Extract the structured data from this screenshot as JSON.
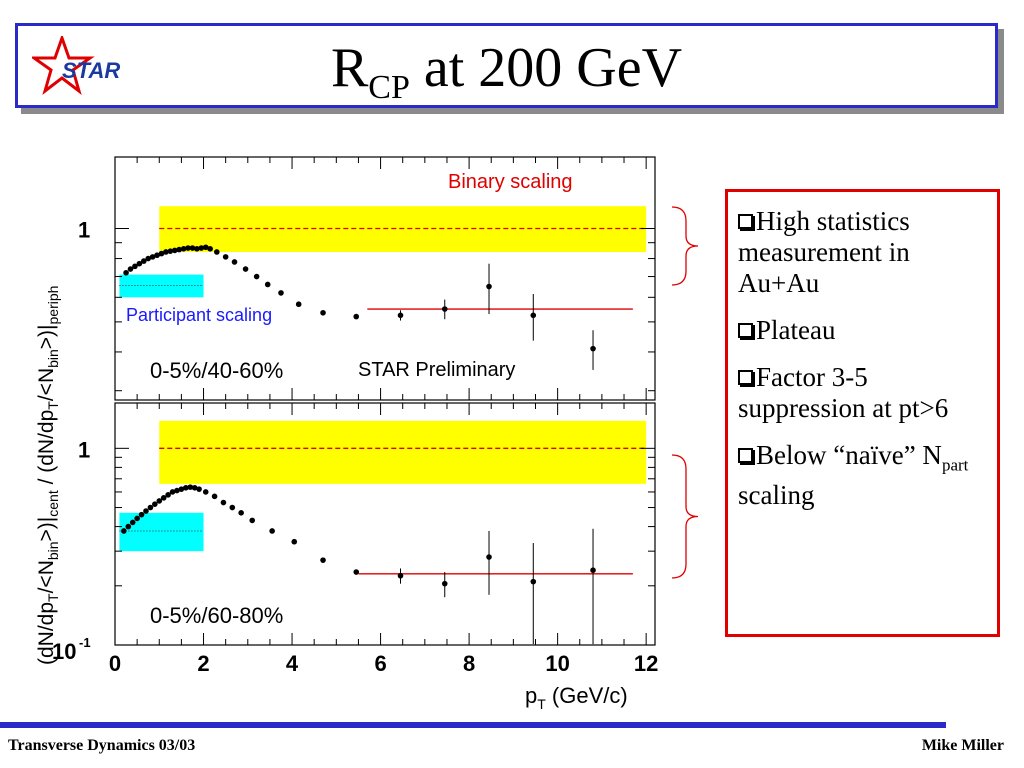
{
  "slide": {
    "title_main": "R",
    "title_sub": "CP",
    "title_rest": " at 200 GeV",
    "logo_text": "STAR",
    "footer_left": "Transverse Dynamics 03/03",
    "footer_right": "Mike Miller"
  },
  "notes": [
    {
      "text": "High statistics measurement in Au+Au"
    },
    {
      "text": "Plateau"
    },
    {
      "text": "Factor 3-5 suppression at pt>6"
    },
    {
      "text": "Below “naïve” N",
      "sub": "part",
      "tail": " scaling"
    }
  ],
  "colors": {
    "band_binary": "#ffff00",
    "band_participant": "#00ffff",
    "fit_line": "#e00000",
    "title_border": "#2a2ac8"
  },
  "chart_data": [
    {
      "type": "scatter",
      "panel": "top",
      "x_range": [
        0,
        12.2
      ],
      "y_scale": "log",
      "ylim": [
        0.28,
        1.7
      ],
      "ytick_label": "1",
      "annotations": {
        "binary": "Binary scaling",
        "participant": "Participant scaling",
        "centrality": "0-5%/40-60%",
        "prelim": "STAR Preliminary"
      },
      "binary_band": {
        "x": [
          1,
          12
        ],
        "y": [
          0.84,
          1.18
        ],
        "center": 1.0
      },
      "participant_band": {
        "x": [
          0.1,
          2
        ],
        "y": [
          0.6,
          0.71
        ],
        "center": 0.655
      },
      "fit": {
        "x": [
          5.7,
          11.7
        ],
        "y": 0.55
      },
      "points": [
        {
          "x": 0.25,
          "y": 0.72
        },
        {
          "x": 0.35,
          "y": 0.74
        },
        {
          "x": 0.45,
          "y": 0.755
        },
        {
          "x": 0.55,
          "y": 0.77
        },
        {
          "x": 0.65,
          "y": 0.785
        },
        {
          "x": 0.75,
          "y": 0.8
        },
        {
          "x": 0.85,
          "y": 0.81
        },
        {
          "x": 0.95,
          "y": 0.82
        },
        {
          "x": 1.05,
          "y": 0.83
        },
        {
          "x": 1.15,
          "y": 0.84
        },
        {
          "x": 1.25,
          "y": 0.845
        },
        {
          "x": 1.35,
          "y": 0.85
        },
        {
          "x": 1.45,
          "y": 0.855
        },
        {
          "x": 1.55,
          "y": 0.86
        },
        {
          "x": 1.65,
          "y": 0.865
        },
        {
          "x": 1.75,
          "y": 0.865
        },
        {
          "x": 1.85,
          "y": 0.86
        },
        {
          "x": 1.95,
          "y": 0.865
        },
        {
          "x": 2.05,
          "y": 0.87
        },
        {
          "x": 2.15,
          "y": 0.86
        },
        {
          "x": 2.3,
          "y": 0.84
        },
        {
          "x": 2.5,
          "y": 0.81
        },
        {
          "x": 2.7,
          "y": 0.78
        },
        {
          "x": 2.95,
          "y": 0.74
        },
        {
          "x": 3.2,
          "y": 0.7
        },
        {
          "x": 3.45,
          "y": 0.66
        },
        {
          "x": 3.75,
          "y": 0.62
        },
        {
          "x": 4.15,
          "y": 0.57
        },
        {
          "x": 4.7,
          "y": 0.535
        },
        {
          "x": 5.45,
          "y": 0.52
        },
        {
          "x": 6.45,
          "y": 0.525,
          "err": 0.02
        },
        {
          "x": 7.45,
          "y": 0.55,
          "err": 0.04
        },
        {
          "x": 8.45,
          "y": 0.65,
          "err": 0.12
        },
        {
          "x": 9.45,
          "y": 0.525,
          "err": 0.09
        },
        {
          "x": 10.8,
          "y": 0.41,
          "err": 0.06
        }
      ]
    },
    {
      "type": "scatter",
      "panel": "bottom",
      "x_range": [
        0,
        12.2
      ],
      "y_scale": "log",
      "ylim": [
        0.1,
        1.7
      ],
      "ytick_labels": [
        "1",
        "10",
        "-1"
      ],
      "xticks": [
        0,
        2,
        4,
        6,
        8,
        10,
        12
      ],
      "xlabel": "p",
      "xlabel_sub": "T",
      "xlabel_rest": " (GeV/c)",
      "ylabel_full": {
        "p1": "(dN/dp",
        "s1": "T",
        "p2": "/<N",
        "s2": "bin",
        "p3": ">)|",
        "s3": "cent",
        "p4": " / (dN/dp",
        "s4": "T",
        "p5": "/<N",
        "s5": "bin",
        "p6": ">)|",
        "s6": "periph"
      },
      "annotations": {
        "centrality": "0-5%/60-80%"
      },
      "binary_band": {
        "x": [
          1,
          12
        ],
        "y": [
          0.66,
          1.38
        ],
        "center": 1.0
      },
      "participant_band": {
        "x": [
          0.1,
          2
        ],
        "y": [
          0.3,
          0.47
        ],
        "center": 0.38
      },
      "fit": {
        "x": [
          5.5,
          11.7
        ],
        "y": 0.23
      },
      "points": [
        {
          "x": 0.2,
          "y": 0.38
        },
        {
          "x": 0.3,
          "y": 0.4
        },
        {
          "x": 0.4,
          "y": 0.42
        },
        {
          "x": 0.5,
          "y": 0.44
        },
        {
          "x": 0.6,
          "y": 0.46
        },
        {
          "x": 0.7,
          "y": 0.48
        },
        {
          "x": 0.8,
          "y": 0.5
        },
        {
          "x": 0.9,
          "y": 0.52
        },
        {
          "x": 1.0,
          "y": 0.54
        },
        {
          "x": 1.1,
          "y": 0.56
        },
        {
          "x": 1.2,
          "y": 0.58
        },
        {
          "x": 1.3,
          "y": 0.6
        },
        {
          "x": 1.4,
          "y": 0.61
        },
        {
          "x": 1.5,
          "y": 0.62
        },
        {
          "x": 1.6,
          "y": 0.63
        },
        {
          "x": 1.7,
          "y": 0.635
        },
        {
          "x": 1.8,
          "y": 0.63
        },
        {
          "x": 1.9,
          "y": 0.62
        },
        {
          "x": 2.05,
          "y": 0.6
        },
        {
          "x": 2.25,
          "y": 0.57
        },
        {
          "x": 2.45,
          "y": 0.53
        },
        {
          "x": 2.65,
          "y": 0.5
        },
        {
          "x": 2.85,
          "y": 0.47
        },
        {
          "x": 3.1,
          "y": 0.43
        },
        {
          "x": 3.55,
          "y": 0.38
        },
        {
          "x": 4.05,
          "y": 0.335
        },
        {
          "x": 4.7,
          "y": 0.27
        },
        {
          "x": 5.45,
          "y": 0.235
        },
        {
          "x": 6.45,
          "y": 0.225,
          "err": 0.02
        },
        {
          "x": 7.45,
          "y": 0.205,
          "err": 0.03
        },
        {
          "x": 8.45,
          "y": 0.28,
          "err": 0.1
        },
        {
          "x": 9.45,
          "y": 0.21,
          "err": 0.12
        },
        {
          "x": 10.8,
          "y": 0.24,
          "err": 0.15
        }
      ]
    }
  ]
}
